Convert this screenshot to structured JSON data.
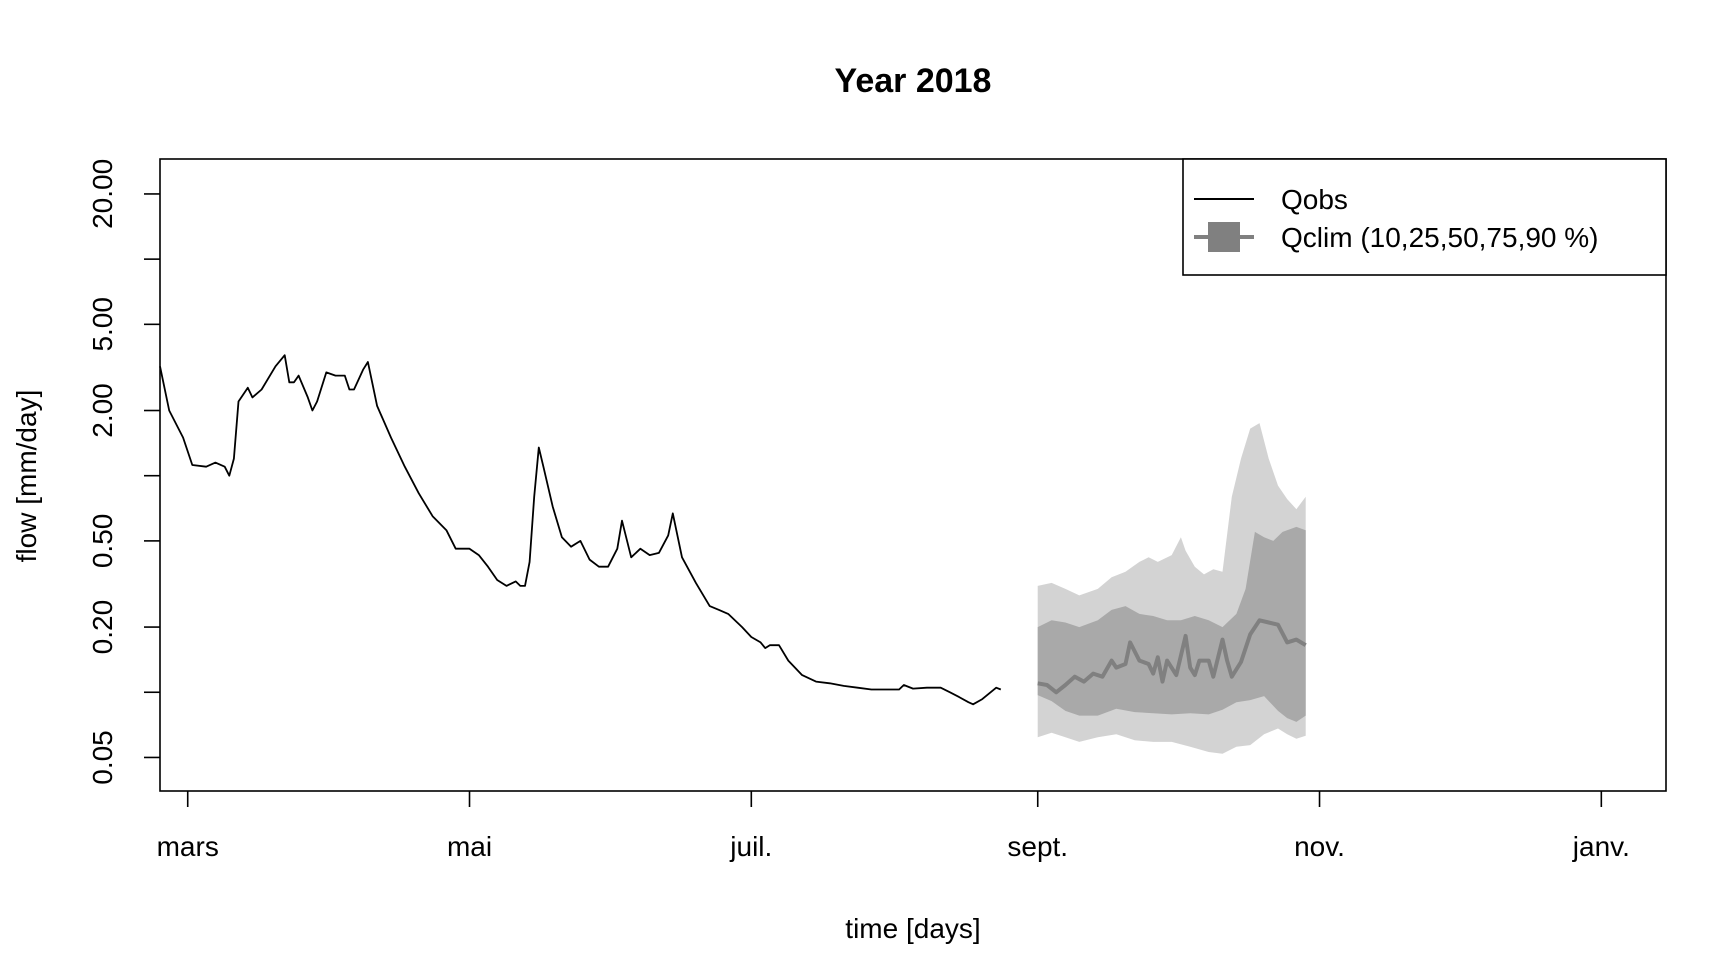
{
  "chart_data": {
    "type": "line",
    "title": "Year 2018",
    "xlabel": "time [days]",
    "ylabel": "flow [mm/day]",
    "y_scale": "log",
    "ylim": [
      0.035,
      29
    ],
    "xlim": [
      "2018-02-23",
      "2019-01-15"
    ],
    "x_ticks": [
      {
        "date": "2018-03-01",
        "label": "mars"
      },
      {
        "date": "2018-05-01",
        "label": "mai"
      },
      {
        "date": "2018-07-01",
        "label": "juil."
      },
      {
        "date": "2018-09-01",
        "label": "sept."
      },
      {
        "date": "2018-11-01",
        "label": "nov."
      },
      {
        "date": "2019-01-01",
        "label": "janv."
      }
    ],
    "y_ticks": [
      {
        "value": 0.05,
        "label": "0.05"
      },
      {
        "value": 0.1,
        "label": ""
      },
      {
        "value": 0.2,
        "label": "0.20"
      },
      {
        "value": 0.5,
        "label": "0.50"
      },
      {
        "value": 1,
        "label": ""
      },
      {
        "value": 2,
        "label": "2.00"
      },
      {
        "value": 5,
        "label": "5.00"
      },
      {
        "value": 10,
        "label": ""
      },
      {
        "value": 20,
        "label": "20.00"
      }
    ],
    "legend": {
      "position": "top-right",
      "entries": [
        {
          "label": "Qobs",
          "style": "line",
          "color": "#000000"
        },
        {
          "label": "Qclim (10,25,50,75,90 %)",
          "style": "band",
          "color": "#808080"
        }
      ]
    },
    "colors": {
      "qobs": "#000000",
      "band_10_90": "#d3d3d3",
      "band_25_75": "#a9a9a9",
      "median": "#808080"
    },
    "series": [
      {
        "name": "Qobs",
        "points": [
          [
            "2018-02-23",
            3.2
          ],
          [
            "2018-02-25",
            2.0
          ],
          [
            "2018-02-28",
            1.5
          ],
          [
            "2018-03-02",
            1.12
          ],
          [
            "2018-03-05",
            1.1
          ],
          [
            "2018-03-07",
            1.15
          ],
          [
            "2018-03-09",
            1.1
          ],
          [
            "2018-03-10",
            1.0
          ],
          [
            "2018-03-11",
            1.2
          ],
          [
            "2018-03-12",
            2.2
          ],
          [
            "2018-03-14",
            2.55
          ],
          [
            "2018-03-15",
            2.3
          ],
          [
            "2018-03-17",
            2.5
          ],
          [
            "2018-03-20",
            3.2
          ],
          [
            "2018-03-22",
            3.6
          ],
          [
            "2018-03-23",
            2.7
          ],
          [
            "2018-03-24",
            2.7
          ],
          [
            "2018-03-25",
            2.9
          ],
          [
            "2018-03-27",
            2.3
          ],
          [
            "2018-03-28",
            2.0
          ],
          [
            "2018-03-29",
            2.2
          ],
          [
            "2018-03-31",
            3.0
          ],
          [
            "2018-04-02",
            2.9
          ],
          [
            "2018-04-04",
            2.9
          ],
          [
            "2018-04-05",
            2.5
          ],
          [
            "2018-04-06",
            2.5
          ],
          [
            "2018-04-08",
            3.1
          ],
          [
            "2018-04-09",
            3.35
          ],
          [
            "2018-04-11",
            2.1
          ],
          [
            "2018-04-14",
            1.5
          ],
          [
            "2018-04-17",
            1.1
          ],
          [
            "2018-04-20",
            0.83
          ],
          [
            "2018-04-23",
            0.65
          ],
          [
            "2018-04-26",
            0.56
          ],
          [
            "2018-04-28",
            0.46
          ],
          [
            "2018-05-01",
            0.46
          ],
          [
            "2018-05-03",
            0.43
          ],
          [
            "2018-05-05",
            0.38
          ],
          [
            "2018-05-07",
            0.33
          ],
          [
            "2018-05-09",
            0.31
          ],
          [
            "2018-05-11",
            0.325
          ],
          [
            "2018-05-12",
            0.31
          ],
          [
            "2018-05-13",
            0.31
          ],
          [
            "2018-05-14",
            0.4
          ],
          [
            "2018-05-15",
            0.8
          ],
          [
            "2018-05-16",
            1.35
          ],
          [
            "2018-05-17",
            1.1
          ],
          [
            "2018-05-19",
            0.72
          ],
          [
            "2018-05-21",
            0.52
          ],
          [
            "2018-05-23",
            0.47
          ],
          [
            "2018-05-25",
            0.5
          ],
          [
            "2018-05-27",
            0.41
          ],
          [
            "2018-05-29",
            0.38
          ],
          [
            "2018-05-31",
            0.38
          ],
          [
            "2018-06-02",
            0.46
          ],
          [
            "2018-06-03",
            0.62
          ],
          [
            "2018-06-05",
            0.42
          ],
          [
            "2018-06-07",
            0.46
          ],
          [
            "2018-06-09",
            0.43
          ],
          [
            "2018-06-11",
            0.44
          ],
          [
            "2018-06-13",
            0.53
          ],
          [
            "2018-06-14",
            0.67
          ],
          [
            "2018-06-16",
            0.42
          ],
          [
            "2018-06-19",
            0.32
          ],
          [
            "2018-06-22",
            0.25
          ],
          [
            "2018-06-24",
            0.24
          ],
          [
            "2018-06-26",
            0.23
          ],
          [
            "2018-06-29",
            0.2
          ],
          [
            "2018-07-01",
            0.18
          ],
          [
            "2018-07-03",
            0.17
          ],
          [
            "2018-07-04",
            0.16
          ],
          [
            "2018-07-05",
            0.165
          ],
          [
            "2018-07-07",
            0.165
          ],
          [
            "2018-07-09",
            0.14
          ],
          [
            "2018-07-12",
            0.12
          ],
          [
            "2018-07-15",
            0.112
          ],
          [
            "2018-07-18",
            0.11
          ],
          [
            "2018-07-21",
            0.107
          ],
          [
            "2018-07-24",
            0.105
          ],
          [
            "2018-07-27",
            0.103
          ],
          [
            "2018-07-30",
            0.103
          ],
          [
            "2018-08-02",
            0.103
          ],
          [
            "2018-08-03",
            0.108
          ],
          [
            "2018-08-05",
            0.104
          ],
          [
            "2018-08-08",
            0.105
          ],
          [
            "2018-08-11",
            0.105
          ],
          [
            "2018-08-13",
            0.1
          ],
          [
            "2018-08-15",
            0.095
          ],
          [
            "2018-08-17",
            0.09
          ],
          [
            "2018-08-18",
            0.088
          ],
          [
            "2018-08-20",
            0.093
          ],
          [
            "2018-08-23",
            0.105
          ],
          [
            "2018-08-24",
            0.103
          ]
        ]
      },
      {
        "name": "Qclim 10 %",
        "points": [
          [
            "2018-09-01",
            0.062
          ],
          [
            "2018-09-04",
            0.065
          ],
          [
            "2018-09-07",
            0.062
          ],
          [
            "2018-09-10",
            0.059
          ],
          [
            "2018-09-14",
            0.062
          ],
          [
            "2018-09-18",
            0.064
          ],
          [
            "2018-09-22",
            0.06
          ],
          [
            "2018-09-26",
            0.059
          ],
          [
            "2018-09-30",
            0.059
          ],
          [
            "2018-10-04",
            0.056
          ],
          [
            "2018-10-08",
            0.053
          ],
          [
            "2018-10-11",
            0.052
          ],
          [
            "2018-10-14",
            0.056
          ],
          [
            "2018-10-17",
            0.057
          ],
          [
            "2018-10-20",
            0.064
          ],
          [
            "2018-10-23",
            0.068
          ],
          [
            "2018-10-25",
            0.064
          ],
          [
            "2018-10-27",
            0.061
          ],
          [
            "2018-10-29",
            0.063
          ]
        ]
      },
      {
        "name": "Qclim 25 %",
        "points": [
          [
            "2018-09-01",
            0.097
          ],
          [
            "2018-09-04",
            0.091
          ],
          [
            "2018-09-07",
            0.082
          ],
          [
            "2018-09-10",
            0.078
          ],
          [
            "2018-09-14",
            0.078
          ],
          [
            "2018-09-18",
            0.084
          ],
          [
            "2018-09-22",
            0.081
          ],
          [
            "2018-09-26",
            0.08
          ],
          [
            "2018-09-30",
            0.079
          ],
          [
            "2018-10-04",
            0.08
          ],
          [
            "2018-10-08",
            0.079
          ],
          [
            "2018-10-11",
            0.083
          ],
          [
            "2018-10-14",
            0.09
          ],
          [
            "2018-10-17",
            0.092
          ],
          [
            "2018-10-20",
            0.096
          ],
          [
            "2018-10-23",
            0.082
          ],
          [
            "2018-10-25",
            0.076
          ],
          [
            "2018-10-27",
            0.073
          ],
          [
            "2018-10-29",
            0.078
          ]
        ]
      },
      {
        "name": "Qclim 50 %",
        "points": [
          [
            "2018-09-01",
            0.11
          ],
          [
            "2018-09-03",
            0.108
          ],
          [
            "2018-09-05",
            0.1
          ],
          [
            "2018-09-07",
            0.108
          ],
          [
            "2018-09-09",
            0.118
          ],
          [
            "2018-09-11",
            0.112
          ],
          [
            "2018-09-13",
            0.122
          ],
          [
            "2018-09-15",
            0.118
          ],
          [
            "2018-09-17",
            0.14
          ],
          [
            "2018-09-18",
            0.13
          ],
          [
            "2018-09-20",
            0.135
          ],
          [
            "2018-09-21",
            0.17
          ],
          [
            "2018-09-23",
            0.14
          ],
          [
            "2018-09-25",
            0.135
          ],
          [
            "2018-09-26",
            0.122
          ],
          [
            "2018-09-27",
            0.145
          ],
          [
            "2018-09-28",
            0.112
          ],
          [
            "2018-09-29",
            0.14
          ],
          [
            "2018-10-01",
            0.12
          ],
          [
            "2018-10-03",
            0.182
          ],
          [
            "2018-10-04",
            0.13
          ],
          [
            "2018-10-05",
            0.12
          ],
          [
            "2018-10-06",
            0.14
          ],
          [
            "2018-10-08",
            0.14
          ],
          [
            "2018-10-09",
            0.118
          ],
          [
            "2018-10-11",
            0.175
          ],
          [
            "2018-10-12",
            0.14
          ],
          [
            "2018-10-13",
            0.118
          ],
          [
            "2018-10-15",
            0.138
          ],
          [
            "2018-10-17",
            0.185
          ],
          [
            "2018-10-19",
            0.215
          ],
          [
            "2018-10-21",
            0.21
          ],
          [
            "2018-10-23",
            0.205
          ],
          [
            "2018-10-25",
            0.17
          ],
          [
            "2018-10-27",
            0.175
          ],
          [
            "2018-10-29",
            0.165
          ]
        ]
      },
      {
        "name": "Qclim 75 %",
        "points": [
          [
            "2018-09-01",
            0.2
          ],
          [
            "2018-09-04",
            0.215
          ],
          [
            "2018-09-07",
            0.21
          ],
          [
            "2018-09-10",
            0.2
          ],
          [
            "2018-09-14",
            0.215
          ],
          [
            "2018-09-17",
            0.24
          ],
          [
            "2018-09-20",
            0.25
          ],
          [
            "2018-09-23",
            0.23
          ],
          [
            "2018-09-26",
            0.225
          ],
          [
            "2018-09-29",
            0.215
          ],
          [
            "2018-10-02",
            0.215
          ],
          [
            "2018-10-05",
            0.225
          ],
          [
            "2018-10-08",
            0.215
          ],
          [
            "2018-10-11",
            0.2
          ],
          [
            "2018-10-14",
            0.23
          ],
          [
            "2018-10-16",
            0.3
          ],
          [
            "2018-10-18",
            0.55
          ],
          [
            "2018-10-20",
            0.52
          ],
          [
            "2018-10-22",
            0.5
          ],
          [
            "2018-10-24",
            0.55
          ],
          [
            "2018-10-27",
            0.58
          ],
          [
            "2018-10-29",
            0.56
          ]
        ]
      },
      {
        "name": "Qclim 90 %",
        "points": [
          [
            "2018-09-01",
            0.31
          ],
          [
            "2018-09-04",
            0.32
          ],
          [
            "2018-09-07",
            0.3
          ],
          [
            "2018-09-10",
            0.28
          ],
          [
            "2018-09-14",
            0.3
          ],
          [
            "2018-09-17",
            0.34
          ],
          [
            "2018-09-20",
            0.36
          ],
          [
            "2018-09-23",
            0.4
          ],
          [
            "2018-09-25",
            0.42
          ],
          [
            "2018-09-27",
            0.4
          ],
          [
            "2018-09-30",
            0.43
          ],
          [
            "2018-10-02",
            0.52
          ],
          [
            "2018-10-03",
            0.45
          ],
          [
            "2018-10-05",
            0.38
          ],
          [
            "2018-10-07",
            0.35
          ],
          [
            "2018-10-09",
            0.37
          ],
          [
            "2018-10-11",
            0.36
          ],
          [
            "2018-10-13",
            0.8
          ],
          [
            "2018-10-15",
            1.2
          ],
          [
            "2018-10-17",
            1.65
          ],
          [
            "2018-10-19",
            1.75
          ],
          [
            "2018-10-21",
            1.2
          ],
          [
            "2018-10-23",
            0.9
          ],
          [
            "2018-10-25",
            0.78
          ],
          [
            "2018-10-27",
            0.7
          ],
          [
            "2018-10-29",
            0.8
          ]
        ]
      }
    ]
  }
}
